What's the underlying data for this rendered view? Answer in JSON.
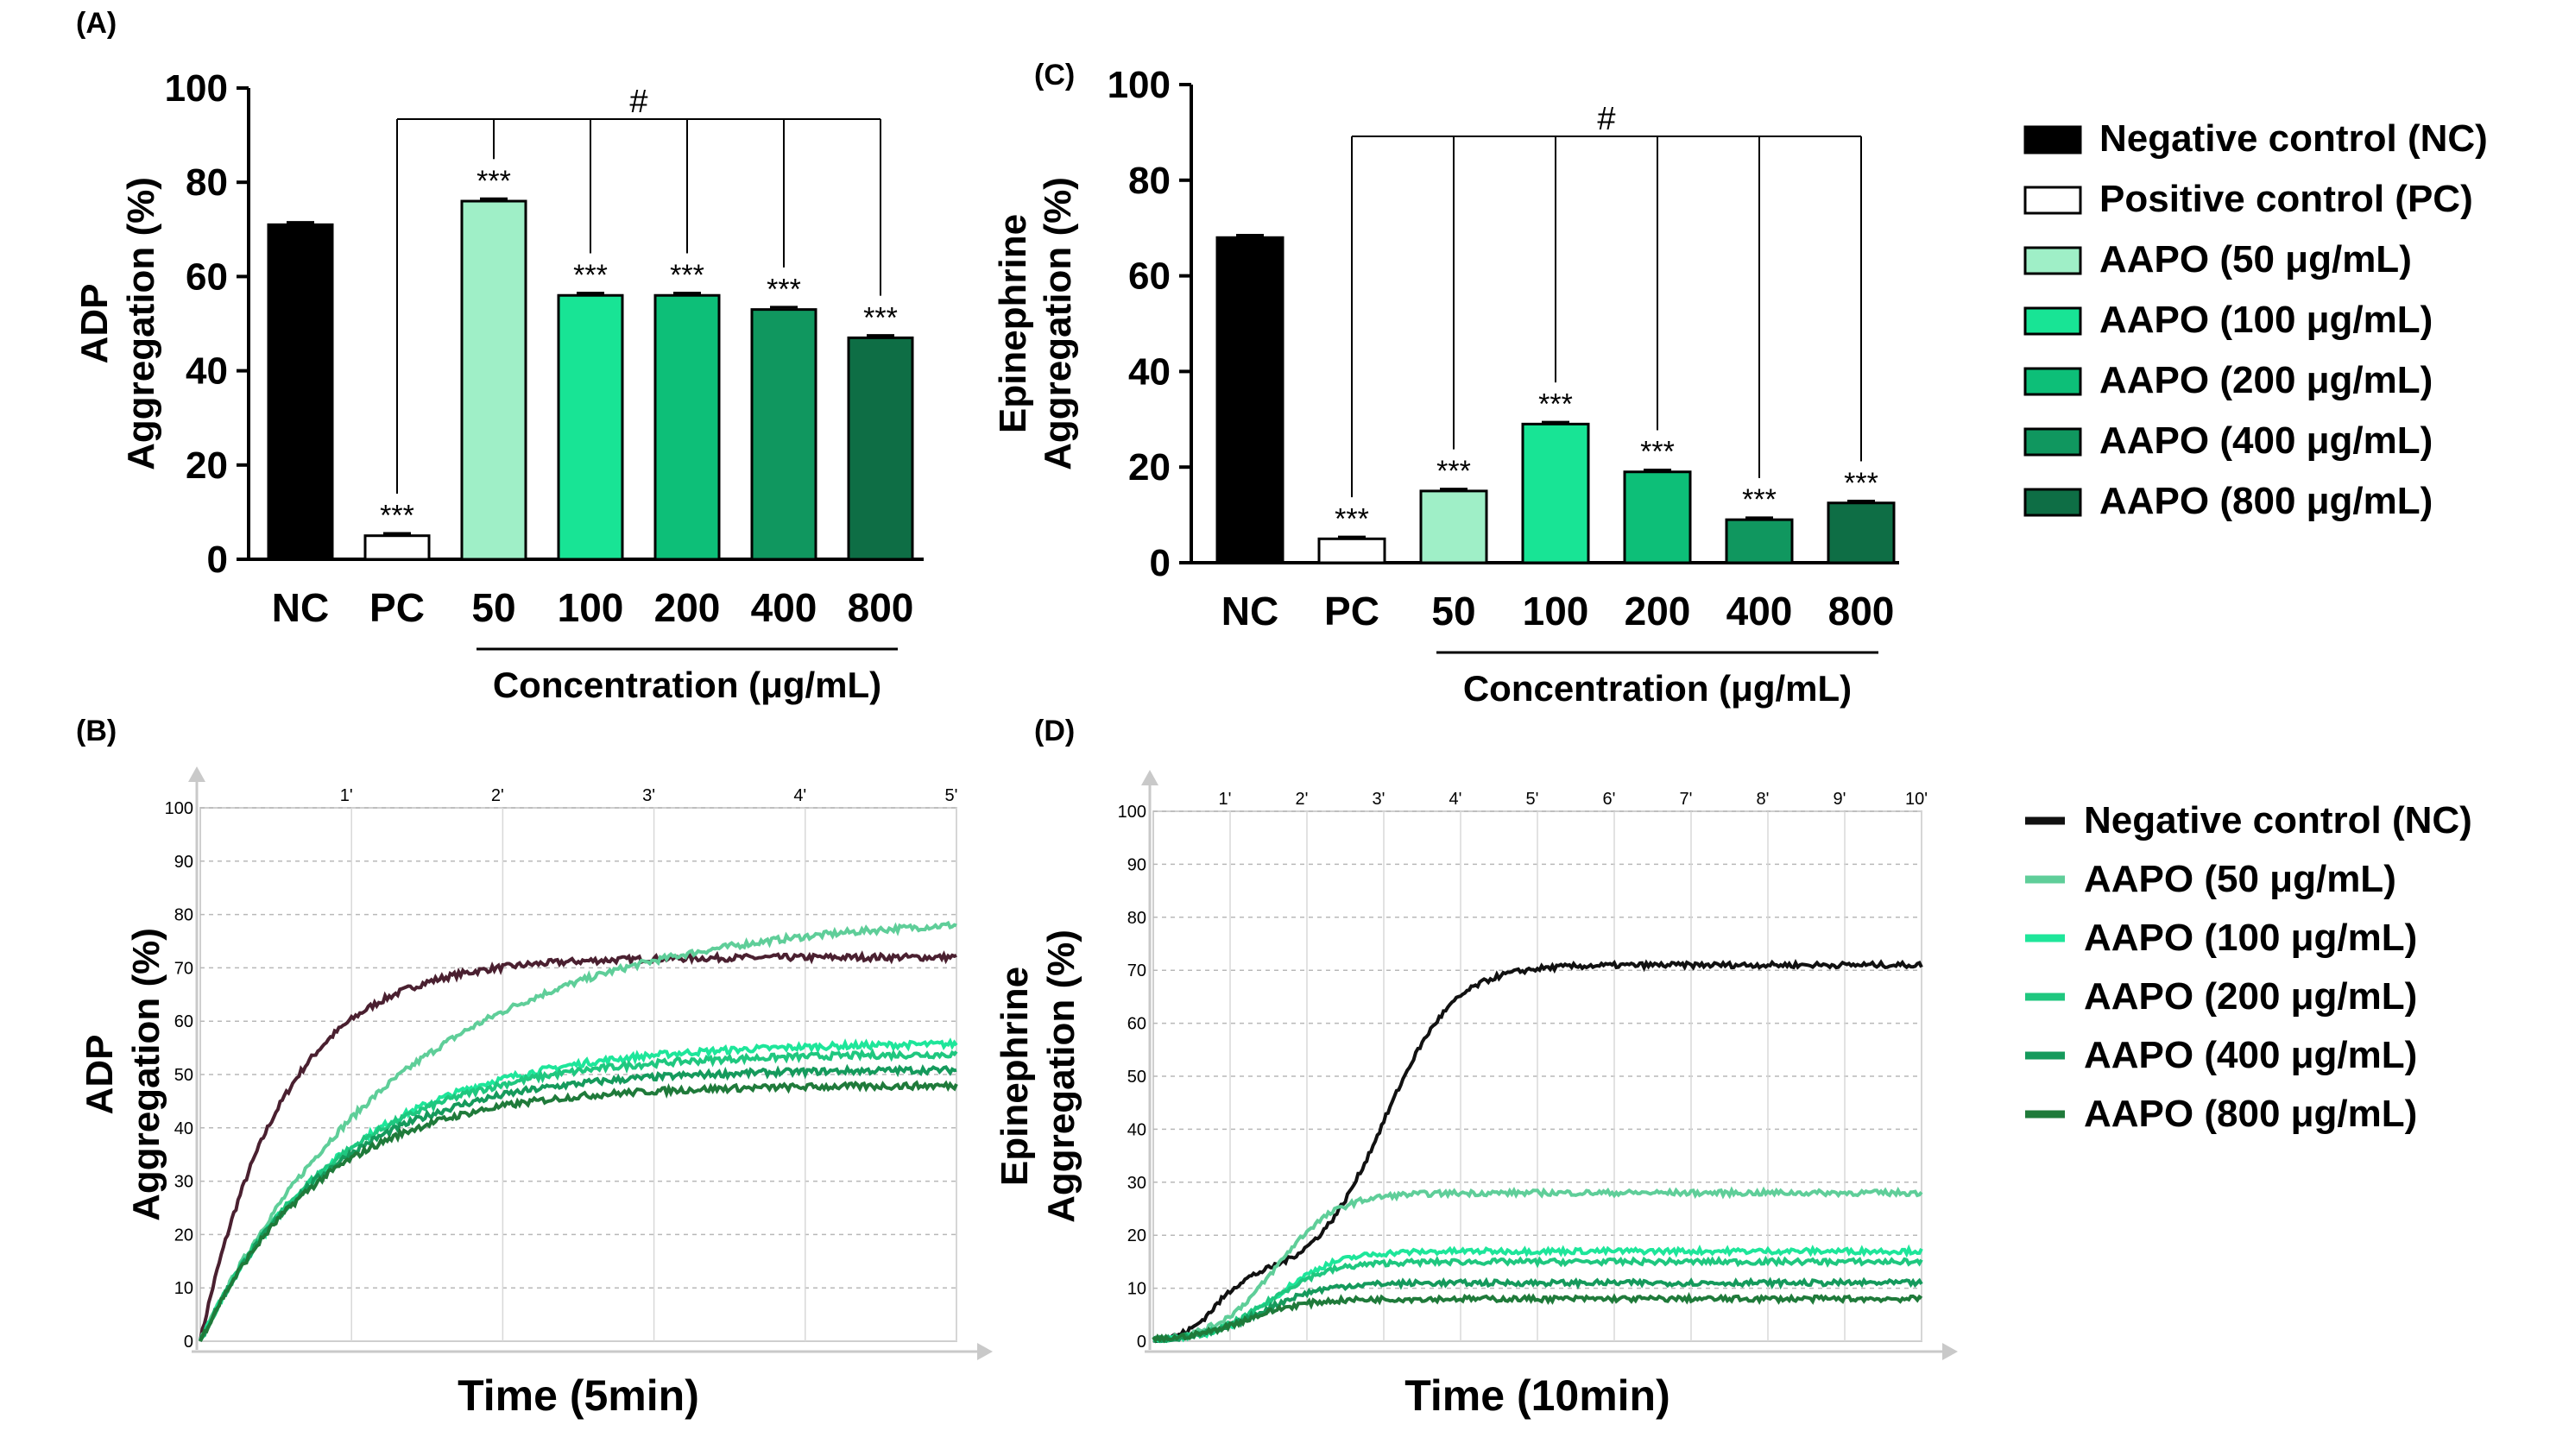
{
  "colors": {
    "nc": "#000000",
    "pc": "#ffffff",
    "c50": "#9FEFC7",
    "c100": "#18E495",
    "c200": "#0DBF78",
    "c400": "#10975F",
    "c800": "#0E6E45",
    "trace_nc": "#4a2030",
    "trace_nc_d": "#111111",
    "trace_50": "#5fce99",
    "trace_100": "#1ee69a",
    "trace_200": "#1fc77f",
    "trace_400": "#159a5c",
    "trace_800": "#1f7a3a"
  },
  "chart_data": [
    {
      "panel": "(A)",
      "type": "bar",
      "categories": [
        "NC",
        "PC",
        "50",
        "100",
        "200",
        "400",
        "800"
      ],
      "values": [
        71,
        5,
        76,
        56,
        56,
        53,
        47
      ],
      "errors": [
        0.5,
        0.5,
        0.5,
        0.5,
        0.5,
        0.5,
        0.5
      ],
      "significance": [
        "",
        "***",
        "***",
        "***",
        "***",
        "***",
        "***"
      ],
      "bracket_label": "#",
      "ylabel": [
        "ADP",
        "Aggregation (%)"
      ],
      "xlabel": "Concentration (μg/mL)",
      "yticks": [
        "0",
        "20",
        "40",
        "60",
        "80",
        "100"
      ],
      "ylim": [
        0,
        100
      ]
    },
    {
      "panel": "(C)",
      "type": "bar",
      "categories": [
        "NC",
        "PC",
        "50",
        "100",
        "200",
        "400",
        "800"
      ],
      "values": [
        68,
        5,
        15,
        29,
        19,
        9,
        12.5
      ],
      "errors": [
        0.5,
        0.4,
        0.4,
        0.4,
        0.4,
        0.4,
        0.4
      ],
      "significance": [
        "",
        "***",
        "***",
        "***",
        "***",
        "***",
        "***"
      ],
      "bracket_label": "#",
      "ylabel": [
        "Epinephrine",
        "Aggregation (%)"
      ],
      "xlabel": "Concentration (μg/mL)",
      "yticks": [
        "0",
        "20",
        "40",
        "60",
        "80",
        "100"
      ],
      "ylim": [
        0,
        100
      ]
    },
    {
      "panel": "(B)",
      "type": "line",
      "xlim": [
        0,
        5
      ],
      "ylim": [
        0,
        100
      ],
      "top_ticks": [
        "1'",
        "2'",
        "3'",
        "4'",
        "5'"
      ],
      "yticks": [
        "0",
        "10",
        "20",
        "30",
        "40",
        "50",
        "60",
        "70",
        "80",
        "90",
        "100"
      ],
      "ylabel": [
        "ADP",
        "Aggregation (%)"
      ],
      "xlabel": "Time (5min)",
      "series": [
        {
          "name": "Negative control (NC)",
          "final": 72,
          "tau": 0.55
        },
        {
          "name": "AAPO (50 μg/mL)",
          "final": 80,
          "tau": 1.35
        },
        {
          "name": "AAPO (100 μg/mL)",
          "final": 56,
          "tau": 0.95
        },
        {
          "name": "AAPO (200 μg/mL)",
          "final": 54,
          "tau": 0.9
        },
        {
          "name": "AAPO (400 μg/mL)",
          "final": 51,
          "tau": 0.85
        },
        {
          "name": "AAPO (800 μg/mL)",
          "final": 48,
          "tau": 0.8
        }
      ]
    },
    {
      "panel": "(D)",
      "type": "line",
      "xlim": [
        0,
        10
      ],
      "ylim": [
        0,
        100
      ],
      "top_ticks": [
        "1'",
        "2'",
        "3'",
        "4'",
        "5'",
        "6'",
        "7'",
        "8'",
        "9'",
        "10'"
      ],
      "yticks": [
        "0",
        "10",
        "20",
        "30",
        "40",
        "50",
        "60",
        "70",
        "80",
        "90",
        "100"
      ],
      "ylabel": [
        "Epinephrine",
        "Aggregation (%)"
      ],
      "xlabel": "Time (10min)",
      "series": [
        {
          "name": "Negative control (NC)",
          "final": 67,
          "mid": 3.0
        },
        {
          "name": "AAPO (50 μg/mL)",
          "final": 28,
          "mid": 1.6
        },
        {
          "name": "AAPO (100 μg/mL)",
          "final": 17,
          "mid": 1.6
        },
        {
          "name": "AAPO (200 μg/mL)",
          "final": 15,
          "mid": 1.5
        },
        {
          "name": "AAPO (400 μg/mL)",
          "final": 11,
          "mid": 1.4
        },
        {
          "name": "AAPO (800 μg/mL)",
          "final": 8,
          "mid": 1.2
        }
      ]
    }
  ],
  "legend_bars": [
    "Negative control (NC)",
    "Positive control (PC)",
    "AAPO (50 μg/mL)",
    "AAPO (100 μg/mL)",
    "AAPO (200 μg/mL)",
    "AAPO (400 μg/mL)",
    "AAPO (800 μg/mL)"
  ],
  "legend_lines": [
    "Negative control (NC)",
    "AAPO (50 μg/mL)",
    "AAPO (100 μg/mL)",
    "AAPO (200 μg/mL)",
    "AAPO (400 μg/mL)",
    "AAPO (800 μg/mL)"
  ]
}
